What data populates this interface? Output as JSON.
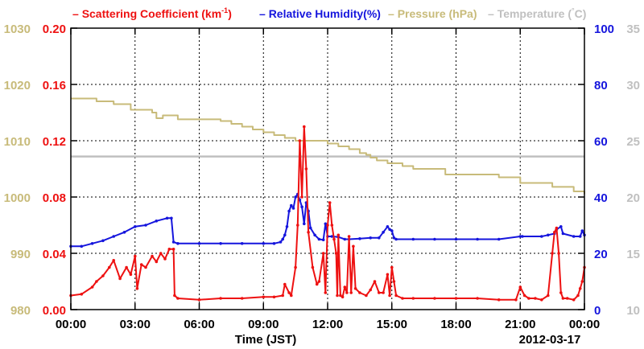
{
  "chart_data": {
    "type": "line",
    "title": "",
    "xlabel": "Time (JST)",
    "date_label": "2012-03-17",
    "x_tick_labels": [
      "00:00",
      "03:00",
      "06:00",
      "09:00",
      "12:00",
      "15:00",
      "18:00",
      "21:00",
      "00:00"
    ],
    "xlim_hours": [
      0,
      24
    ],
    "grid": true,
    "legend_position": "top",
    "axes": {
      "pressure": {
        "side": "left-outer",
        "ylim": [
          980,
          1030
        ],
        "ticks": [
          "980",
          "990",
          "1000",
          "1010",
          "1020",
          "1030"
        ],
        "color": "#c8bb7a"
      },
      "scattering": {
        "side": "left-inner",
        "ylim": [
          0,
          0.2
        ],
        "ticks": [
          "0.00",
          "0.04",
          "0.08",
          "0.12",
          "0.16",
          "0.20"
        ],
        "color": "#ee1111"
      },
      "humidity": {
        "side": "right-inner",
        "ylim": [
          0,
          100
        ],
        "ticks": [
          "0",
          "20",
          "40",
          "60",
          "80",
          "100"
        ],
        "color": "#1515dd"
      },
      "temperature": {
        "side": "right-outer",
        "ylim": [
          10,
          35
        ],
        "ticks": [
          "10",
          "15",
          "20",
          "25",
          "30",
          "35"
        ],
        "color": "#c0c0c0"
      }
    },
    "series": [
      {
        "key": "scattering",
        "name": "Scattering Coefficient (km",
        "name_sup": "-1",
        "name_tail": ")",
        "axis": "scattering",
        "color": "#ee1111",
        "markers": true,
        "x": [
          0,
          0.5,
          1,
          1.2,
          1.5,
          1.8,
          2.0,
          2.3,
          2.6,
          2.8,
          3.0,
          3.1,
          3.3,
          3.5,
          3.8,
          4.0,
          4.2,
          4.4,
          4.6,
          4.8,
          4.85,
          5.0,
          6.0,
          7.0,
          8.0,
          9.0,
          9.5,
          9.9,
          10.0,
          10.2,
          10.3,
          10.5,
          10.6,
          10.7,
          10.8,
          10.9,
          11.0,
          11.1,
          11.3,
          11.5,
          11.6,
          11.8,
          11.9,
          12.0,
          12.1,
          12.2,
          12.3,
          12.4,
          12.45,
          12.5,
          12.6,
          12.7,
          12.8,
          12.9,
          13.0,
          13.1,
          13.2,
          13.3,
          13.5,
          13.8,
          14.0,
          14.2,
          14.4,
          14.6,
          14.8,
          14.9,
          15.0,
          15.1,
          15.2,
          15.5,
          16.0,
          17.0,
          18.0,
          19.0,
          20.0,
          20.8,
          21.0,
          21.2,
          21.4,
          21.7,
          22.0,
          22.3,
          22.5,
          22.6,
          22.7,
          22.8,
          22.9,
          23.0,
          23.2,
          23.5,
          23.7,
          23.8,
          23.9,
          24.0
        ],
        "y": [
          0.01,
          0.011,
          0.016,
          0.02,
          0.024,
          0.03,
          0.035,
          0.022,
          0.03,
          0.025,
          0.038,
          0.015,
          0.032,
          0.03,
          0.038,
          0.034,
          0.04,
          0.036,
          0.043,
          0.043,
          0.01,
          0.008,
          0.007,
          0.008,
          0.008,
          0.009,
          0.009,
          0.01,
          0.018,
          0.012,
          0.01,
          0.03,
          0.06,
          0.12,
          0.08,
          0.13,
          0.1,
          0.055,
          0.03,
          0.018,
          0.02,
          0.04,
          0.012,
          0.06,
          0.076,
          0.06,
          0.05,
          0.04,
          0.01,
          0.053,
          0.01,
          0.009,
          0.016,
          0.012,
          0.052,
          0.012,
          0.045,
          0.015,
          0.012,
          0.01,
          0.014,
          0.02,
          0.012,
          0.012,
          0.025,
          0.01,
          0.03,
          0.02,
          0.01,
          0.008,
          0.008,
          0.008,
          0.008,
          0.008,
          0.007,
          0.007,
          0.016,
          0.01,
          0.008,
          0.008,
          0.007,
          0.01,
          0.04,
          0.055,
          0.058,
          0.04,
          0.012,
          0.008,
          0.008,
          0.007,
          0.01,
          0.015,
          0.02,
          0.03
        ]
      },
      {
        "key": "humidity",
        "name": "Relative Humidity(%)",
        "axis": "humidity",
        "color": "#1515dd",
        "markers": true,
        "x": [
          0,
          0.5,
          1.0,
          1.5,
          2.0,
          2.5,
          3.0,
          3.5,
          4.0,
          4.5,
          4.7,
          4.8,
          5.0,
          6.0,
          7.0,
          8.0,
          9.0,
          9.5,
          9.8,
          9.9,
          10.0,
          10.1,
          10.2,
          10.3,
          10.4,
          10.5,
          10.6,
          10.7,
          10.8,
          10.9,
          11.0,
          11.1,
          11.2,
          11.4,
          11.6,
          11.8,
          11.9,
          12.0,
          12.2,
          12.5,
          12.8,
          13.0,
          13.5,
          14.0,
          14.4,
          14.6,
          14.8,
          14.9,
          15.0,
          15.1,
          15.2,
          16.0,
          17.0,
          18.0,
          19.0,
          20.0,
          21.0,
          21.1,
          22.0,
          22.3,
          22.6,
          22.7,
          22.9,
          23.0,
          23.5,
          23.8,
          23.9,
          24.0
        ],
        "y": [
          22.5,
          22.5,
          23.5,
          24.5,
          26.0,
          27.5,
          29.5,
          30.0,
          31.5,
          32.5,
          32.5,
          24.0,
          23.5,
          23.5,
          23.5,
          23.5,
          23.5,
          23.5,
          24.0,
          25.0,
          26.5,
          29.5,
          35.0,
          37.0,
          36.0,
          40.0,
          41.0,
          39.0,
          36.5,
          30.5,
          38.0,
          35.0,
          29.0,
          26.5,
          25.0,
          24.8,
          30.5,
          26.0,
          26.0,
          25.8,
          25.0,
          25.0,
          25.2,
          25.5,
          25.5,
          27.5,
          29.5,
          28.5,
          28.0,
          25.5,
          25.0,
          25.0,
          25.0,
          25.0,
          25.0,
          25.0,
          26.0,
          26.0,
          26.0,
          26.5,
          27.0,
          28.5,
          29.5,
          27.0,
          26.0,
          26.0,
          28.0,
          26.5
        ]
      },
      {
        "key": "pressure",
        "name": "Pressure (hPa)",
        "axis": "pressure",
        "color": "#c8bb7a",
        "markers": false,
        "step": true,
        "x": [
          0,
          1.2,
          2.0,
          2.8,
          3.8,
          4.0,
          4.3,
          5.0,
          7.0,
          7.5,
          8.0,
          8.5,
          9.0,
          9.5,
          10.0,
          10.5,
          11.5,
          12.0,
          12.5,
          13.0,
          13.5,
          13.8,
          14.0,
          14.3,
          14.8,
          15.0,
          15.5,
          16.0,
          17.5,
          18.5,
          20.0,
          21.0,
          22.0,
          22.5,
          23.5,
          24.0
        ],
        "y": [
          1017.5,
          1017.0,
          1016.5,
          1015.5,
          1015.0,
          1014.0,
          1014.5,
          1013.8,
          1013.5,
          1013.0,
          1012.5,
          1012.0,
          1011.5,
          1011.0,
          1010.5,
          1010.0,
          1010.0,
          1009.5,
          1009.0,
          1008.5,
          1007.8,
          1007.5,
          1007.0,
          1006.5,
          1006.0,
          1006.0,
          1005.5,
          1005.0,
          1004.0,
          1004.0,
          1003.5,
          1002.5,
          1002.5,
          1001.8,
          1001.0,
          1000.5
        ]
      },
      {
        "key": "temperature",
        "name": "Temperature (",
        "name_tail": "C)",
        "name_degree": "°",
        "axis": "temperature",
        "color": "#c0c0c0",
        "markers": false,
        "x": [
          0,
          24
        ],
        "y": [
          23.6,
          23.6
        ]
      }
    ]
  }
}
